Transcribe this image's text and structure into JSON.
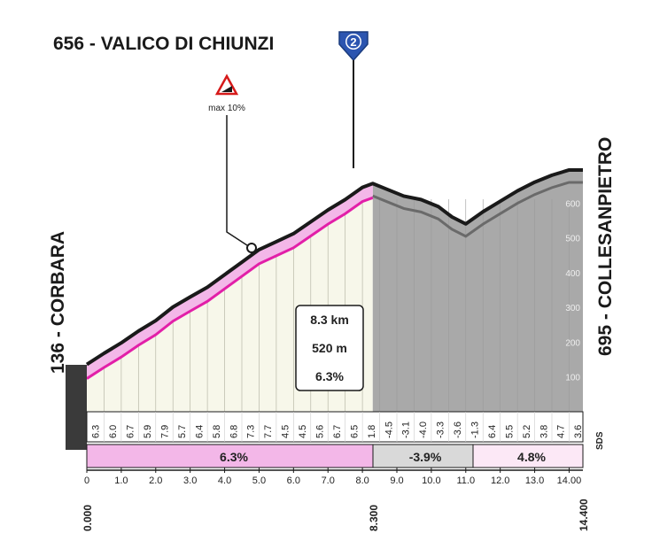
{
  "title": "656 - VALICO DI CHIUNZI",
  "category_badge": "2",
  "max_gradient": {
    "label": "max 10%",
    "icon": "steep-climb-warning-icon"
  },
  "start_label": "136 - CORBARA",
  "finish_label": "695 - COLLESANPIETRO",
  "summary": {
    "distance": "8.3 km",
    "gain": "520 m",
    "avg": "6.3%"
  },
  "logo": "SDS",
  "colors": {
    "climb_fill": "#f7f7ea",
    "climb_line": "#e21fa8",
    "climb_band": "#f3b7e8",
    "descent_fill": "#a9a9a9",
    "profile_edge": "#1a1a1a",
    "accent": "#2c55b0"
  },
  "altitude_ticks": [
    "100",
    "200",
    "300",
    "400",
    "500",
    "600"
  ],
  "km_ticks": [
    "0",
    "1.0",
    "2.0",
    "3.0",
    "4.0",
    "5.0",
    "6.0",
    "7.0",
    "8.0",
    "9.0",
    "10.0",
    "11.0",
    "12.0",
    "13.0",
    "14.00"
  ],
  "cumulative_marks": [
    "0.000",
    "8.300",
    "14.400"
  ],
  "gradient_labels": [
    "6.3",
    "6.0",
    "6.7",
    "5.9",
    "7.9",
    "5.7",
    "6.4",
    "5.8",
    "6.8",
    "7.3",
    "7.7",
    "4.5",
    "4.5",
    "5.6",
    "6.7",
    "6.5",
    "1.8",
    "-4.5",
    "-3.1",
    "-4.0",
    "-3.3",
    "-3.6",
    "-1.3",
    "6.4",
    "5.5",
    "5.2",
    "3.8",
    "4.7",
    "3.6"
  ],
  "segment_averages": [
    "6.3%",
    "-3.9%",
    "4.8%"
  ],
  "chart_data": {
    "type": "area",
    "title": "656 - VALICO DI CHIUNZI",
    "xlabel": "",
    "ylabel": "",
    "x_unit": "km",
    "y_unit": "m",
    "xlim": [
      0,
      14.4
    ],
    "ylim": [
      0,
      700
    ],
    "x": [
      0,
      0.5,
      1.0,
      1.5,
      2.0,
      2.5,
      3.0,
      3.5,
      4.0,
      4.5,
      5.0,
      5.5,
      6.0,
      6.5,
      7.0,
      7.5,
      8.0,
      8.3,
      8.7,
      9.2,
      9.7,
      10.2,
      10.6,
      11.0,
      11.5,
      12.0,
      12.5,
      13.0,
      13.5,
      14.0,
      14.4
    ],
    "y": [
      136,
      168,
      198,
      232,
      262,
      301,
      330,
      358,
      394,
      430,
      466,
      489,
      512,
      546,
      580,
      610,
      645,
      656,
      640,
      620,
      610,
      590,
      560,
      540,
      575,
      605,
      635,
      660,
      680,
      695,
      695
    ],
    "summit_km": 8.3,
    "summit_altitude_m": 656,
    "finish_altitude_m": 695,
    "max_gradient_percent": 10
  }
}
